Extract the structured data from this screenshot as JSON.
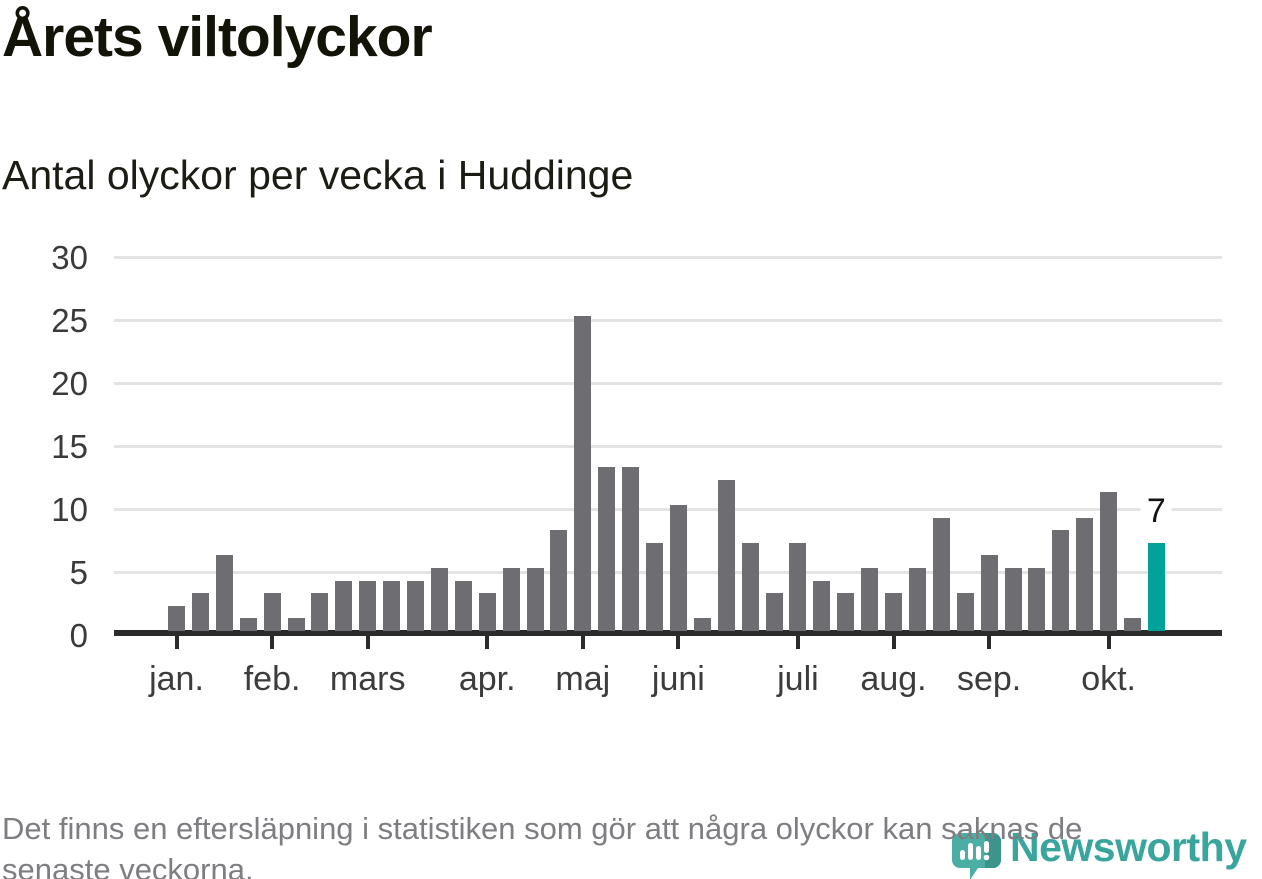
{
  "header": {
    "title": "Årets viltolyckor",
    "subtitle": "Antal olyckor per vecka i Huddinge"
  },
  "footer": {
    "note_line1": "Det finns en eftersläpning i statistiken som gör att några olyckor kan saknas de",
    "note_line2": "senaste veckorna."
  },
  "branding": {
    "name": "Newsworthy",
    "icon": "newsworthy-speech-bubble-bar-chart-icon",
    "text_color": "#3aa59d",
    "icon_color": "#4aaea4",
    "icon_shadow_color": "#3c948c"
  },
  "colors": {
    "bar": "#6e6e72",
    "highlight": "#00a29a",
    "gridline": "#e4e4e4",
    "axis": "#2b2b2b",
    "tick_text": "#3a3a3a",
    "footer_text": "#7e7e82"
  },
  "chart_data": {
    "type": "bar",
    "title": "Årets viltolyckor",
    "subtitle": "Antal olyckor per vecka i Huddinge",
    "xlabel": "",
    "ylabel": "Antal olyckor per vecka",
    "ylim": [
      0,
      30
    ],
    "y_ticks": [
      0,
      5,
      10,
      15,
      20,
      25,
      30
    ],
    "grid": "horizontal",
    "legend_position": "none",
    "categories_note": "one bar per week, jan-okt",
    "values": [
      2,
      3,
      6,
      1,
      3,
      1,
      3,
      4,
      4,
      4,
      4,
      5,
      4,
      3,
      5,
      5,
      8,
      25,
      13,
      13,
      7,
      10,
      1,
      12,
      7,
      3,
      7,
      4,
      3,
      5,
      3,
      5,
      9,
      3,
      6,
      5,
      5,
      8,
      9,
      11,
      1,
      7
    ],
    "highlighted_index": 41,
    "highlight_label": "7",
    "x_tick_labels": [
      "jan.",
      "feb.",
      "mars",
      "apr.",
      "maj",
      "juni",
      "juli",
      "aug.",
      "sep.",
      "okt."
    ],
    "x_tick_week_indices": [
      0,
      4,
      8,
      13,
      17,
      21,
      26,
      30,
      34,
      39
    ]
  }
}
